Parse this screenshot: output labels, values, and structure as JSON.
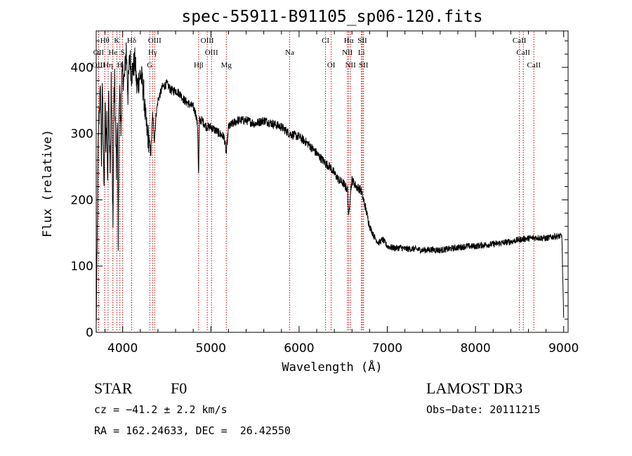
{
  "chart_data": {
    "type": "line",
    "title": "spec-55911-B91105_sp06-120.fits",
    "xlabel": "Wavelength (Å)",
    "ylabel": "Flux (relative)",
    "xlim": [
      3700,
      9050
    ],
    "ylim": [
      0,
      455
    ],
    "xticks": [
      4000,
      5000,
      6000,
      7000,
      8000,
      9000
    ],
    "xtick_labels": [
      "4000",
      "5000",
      "6000",
      "7000",
      "8000",
      "9000"
    ],
    "yticks": [
      0,
      100,
      200,
      300,
      400
    ],
    "ytick_labels": [
      "0",
      "100",
      "200",
      "300",
      "400"
    ],
    "series": [
      {
        "name": "flux",
        "x": [
          3700,
          3710,
          3720,
          3730,
          3740,
          3750,
          3760,
          3770,
          3780,
          3790,
          3800,
          3810,
          3820,
          3830,
          3840,
          3850,
          3860,
          3870,
          3880,
          3890,
          3900,
          3910,
          3920,
          3930,
          3940,
          3950,
          3960,
          3970,
          3980,
          3990,
          4000,
          4020,
          4040,
          4060,
          4080,
          4100,
          4120,
          4140,
          4160,
          4180,
          4200,
          4220,
          4240,
          4260,
          4280,
          4300,
          4320,
          4340,
          4360,
          4380,
          4400,
          4450,
          4500,
          4550,
          4600,
          4650,
          4700,
          4750,
          4800,
          4830,
          4850,
          4861,
          4870,
          4900,
          4950,
          5000,
          5050,
          5100,
          5150,
          5175,
          5200,
          5300,
          5400,
          5500,
          5600,
          5700,
          5800,
          5890,
          6000,
          6100,
          6200,
          6300,
          6350,
          6400,
          6450,
          6500,
          6550,
          6563,
          6580,
          6600,
          6650,
          6700,
          6750,
          6800,
          6850,
          6900,
          6950,
          7000,
          7050,
          7100,
          7150,
          7200,
          7300,
          7400,
          7500,
          7600,
          7700,
          7800,
          7900,
          8000,
          8100,
          8200,
          8300,
          8400,
          8500,
          8600,
          8700,
          8800,
          8900,
          8980,
          8990,
          9000
        ],
        "values": [
          5,
          120,
          260,
          320,
          350,
          360,
          260,
          380,
          300,
          200,
          350,
          270,
          330,
          220,
          360,
          300,
          250,
          380,
          280,
          160,
          340,
          380,
          300,
          240,
          330,
          120,
          360,
          360,
          300,
          380,
          390,
          380,
          430,
          360,
          420,
          390,
          400,
          410,
          370,
          380,
          390,
          380,
          360,
          320,
          300,
          290,
          270,
          330,
          290,
          330,
          350,
          370,
          375,
          365,
          365,
          360,
          350,
          345,
          340,
          330,
          310,
          230,
          320,
          320,
          310,
          310,
          305,
          300,
          295,
          270,
          310,
          320,
          320,
          315,
          320,
          315,
          310,
          300,
          295,
          285,
          270,
          255,
          250,
          240,
          230,
          225,
          215,
          170,
          210,
          230,
          220,
          215,
          190,
          160,
          145,
          135,
          140,
          130,
          128,
          127,
          128,
          126,
          126,
          124,
          125,
          124,
          126,
          128,
          130,
          130,
          132,
          133,
          135,
          137,
          140,
          142,
          143,
          142,
          145,
          145,
          80,
          20
        ]
      }
    ],
    "lines": [
      {
        "name": "Hθ",
        "x": 3797,
        "row": 0
      },
      {
        "name": "K",
        "x": 3934,
        "row": 0
      },
      {
        "name": "Hδ",
        "x": 4102,
        "row": 0
      },
      {
        "name": "OIII",
        "x": 4363,
        "row": 0
      },
      {
        "name": "OIII",
        "x": 4959,
        "row": 0
      },
      {
        "name": "CI",
        "x": 6300,
        "row": 0
      },
      {
        "name": "Hα",
        "x": 6563,
        "row": 0
      },
      {
        "name": "SII",
        "x": 6717,
        "row": 0
      },
      {
        "name": "CaII",
        "x": 8498,
        "row": 0
      },
      {
        "name": "OII",
        "x": 3727,
        "row": 1
      },
      {
        "name": "He",
        "x": 3889,
        "row": 1
      },
      {
        "name": "S",
        "x": 4000,
        "row": 1
      },
      {
        "name": "Hγ",
        "x": 4340,
        "row": 1
      },
      {
        "name": "OIII",
        "x": 5007,
        "row": 1
      },
      {
        "name": "Na",
        "x": 5893,
        "row": 1
      },
      {
        "name": "NII",
        "x": 6548,
        "row": 1
      },
      {
        "name": "Li",
        "x": 6707,
        "row": 1
      },
      {
        "name": "CaII",
        "x": 8542,
        "row": 1
      },
      {
        "name": "OIII",
        "x": 3727,
        "row": 2
      },
      {
        "name": "Hη",
        "x": 3835,
        "row": 2
      },
      {
        "name": "H",
        "x": 3968,
        "row": 2
      },
      {
        "name": "G",
        "x": 4307,
        "row": 2
      },
      {
        "name": "Hβ",
        "x": 4861,
        "row": 2
      },
      {
        "name": "Mg",
        "x": 5175,
        "row": 2
      },
      {
        "name": "OI",
        "x": 6364,
        "row": 2
      },
      {
        "name": "NII",
        "x": 6583,
        "row": 2
      },
      {
        "name": "SII",
        "x": 6731,
        "row": 2
      },
      {
        "name": "CaII",
        "x": 8662,
        "row": 2
      }
    ]
  },
  "info": {
    "class_label": "STAR",
    "subclass": "F0",
    "survey": "LAMOST DR3",
    "redshift_text": "cz = −41.2 ± 2.2 km/s",
    "obs_date_text": "Obs−Date: 20111215",
    "coords_text": "RA = 162.24633, DEC =  26.42550"
  }
}
